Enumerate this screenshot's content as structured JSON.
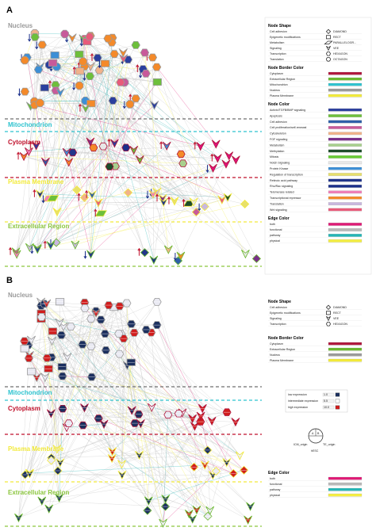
{
  "panels": [
    {
      "letter": "A",
      "regions": [
        "Nucleus",
        "Mitochondrion",
        "Cytoplasm",
        "Plasma Membrane",
        "Extracellular Region"
      ],
      "legend": {
        "node_shape": {
          "title": "Node Shape",
          "items": [
            {
              "label": "Cell adhesion",
              "shape": "DIAMOND"
            },
            {
              "label": "Epigenetic modifications",
              "shape": "RECT"
            },
            {
              "label": "Metabolism",
              "shape": "PARALLELOGR..."
            },
            {
              "label": "Signaling",
              "shape": "VEE"
            },
            {
              "label": "Transcription",
              "shape": "HEXAGON"
            },
            {
              "label": "Translation",
              "shape": "OCTAGON"
            }
          ]
        },
        "node_border_color": {
          "title": "Node Border Color",
          "items": [
            {
              "label": "Cytoplasm",
              "color": "#b0163c"
            },
            {
              "label": "Extracellular Region",
              "color": "#6ab82e"
            },
            {
              "label": "Mitochondrion",
              "color": "#2ec3cf"
            },
            {
              "label": "Nucleus",
              "color": "#9a9a9a"
            },
            {
              "label": "Plasma Membrane",
              "color": "#f2ea3a"
            }
          ]
        },
        "node_color": {
          "title": "Node Color",
          "items": [
            {
              "label": "Activin/TGFB/BMP signaling",
              "color": "#2b3f9e"
            },
            {
              "label": "Apoptosis",
              "color": "#6dbf3b"
            },
            {
              "label": "Cell adhesion",
              "color": "#2e5fa8"
            },
            {
              "label": "Cell proliferation/self-renewal",
              "color": "#c85a9a"
            },
            {
              "label": "Cytoskeleton",
              "color": "#f1b28a"
            },
            {
              "label": "FGF signaling",
              "color": "#7a2e8a"
            },
            {
              "label": "Metabolism",
              "color": "#a8d08d"
            },
            {
              "label": "Methylation",
              "color": "#1e4d2b"
            },
            {
              "label": "Mitosis",
              "color": "#66cc33"
            },
            {
              "label": "Notch Signaling",
              "color": "#e8e8e8"
            },
            {
              "label": "Protein Kinase",
              "color": "#3d8fd6"
            },
            {
              "label": "Regulation of transcription",
              "color": "#e8e06a"
            },
            {
              "label": "Retinoic acid pathway",
              "color": "#23368a"
            },
            {
              "label": "Rho/Rac signaling",
              "color": "#1b2f8a"
            },
            {
              "label": "Telomerase related",
              "color": "#f07fb8"
            },
            {
              "label": "Transcriptional repressor",
              "color": "#f48a2a"
            },
            {
              "label": "Translation",
              "color": "#c9b7df"
            },
            {
              "label": "Wnt signaling",
              "color": "#e85b7a"
            }
          ]
        },
        "edge_color": {
          "title": "Edge Color",
          "items": [
            {
              "label": "both",
              "color": "#e01b76"
            },
            {
              "label": "functional",
              "color": "#b9b9b9"
            },
            {
              "label": "pathway",
              "color": "#25b6b6"
            },
            {
              "label": "physical",
              "color": "#f5ef42"
            }
          ]
        }
      }
    },
    {
      "letter": "B",
      "regions": [
        "Nucleus",
        "Mitochondrion",
        "Cytoplasm",
        "Plasma Membrane",
        "Extracellular Region"
      ],
      "legend": {
        "node_shape": {
          "title": "Node Shape",
          "items": [
            {
              "label": "Cell adhesion",
              "shape": "DIAMOND"
            },
            {
              "label": "Epigenetic modifications",
              "shape": "RECT"
            },
            {
              "label": "Signaling",
              "shape": "VEE"
            },
            {
              "label": "Transcription",
              "shape": "HEXAGON"
            }
          ]
        },
        "node_border_color": {
          "title": "Node Border Color",
          "items": [
            {
              "label": "Cytoplasm",
              "color": "#b0163c"
            },
            {
              "label": "Extracellular Region",
              "color": "#6ab82e"
            },
            {
              "label": "Nucleus",
              "color": "#9a9a9a"
            },
            {
              "label": "Plasma Membrane",
              "color": "#f2ea3a"
            }
          ]
        },
        "expression": [
          {
            "label": "low expression",
            "value": "1.0",
            "color": "#1b2f5e"
          },
          {
            "label": "intermediate expression",
            "value": "5.5",
            "color": "#ffffff"
          },
          {
            "label": "high expression",
            "value": "10.0",
            "color": "#d01c1c"
          }
        ],
        "glyph": {
          "top_left": "A",
          "top_right": "B",
          "left": "ICM_origin",
          "right": "TE_origin",
          "bottom": "hESC"
        },
        "edge_color": {
          "title": "Edge Color",
          "items": [
            {
              "label": "both",
              "color": "#e01b76"
            },
            {
              "label": "functional",
              "color": "#b9b9b9"
            },
            {
              "label": "pathway",
              "color": "#25b6b6"
            },
            {
              "label": "physical",
              "color": "#f5ef42"
            }
          ]
        }
      }
    }
  ],
  "styles": {
    "region_colors": [
      "#9a9a9a",
      "#2ec3cf",
      "#c0122c",
      "#f2ea3a",
      "#8cc63f"
    ],
    "divider_colors": [
      "#6f6f6f",
      "#2ec3cf",
      "#c0122c",
      "#f2ea3a",
      "#8cc63f"
    ],
    "arrow_up": "#c0122c",
    "arrow_down": "#1b2f8a"
  }
}
